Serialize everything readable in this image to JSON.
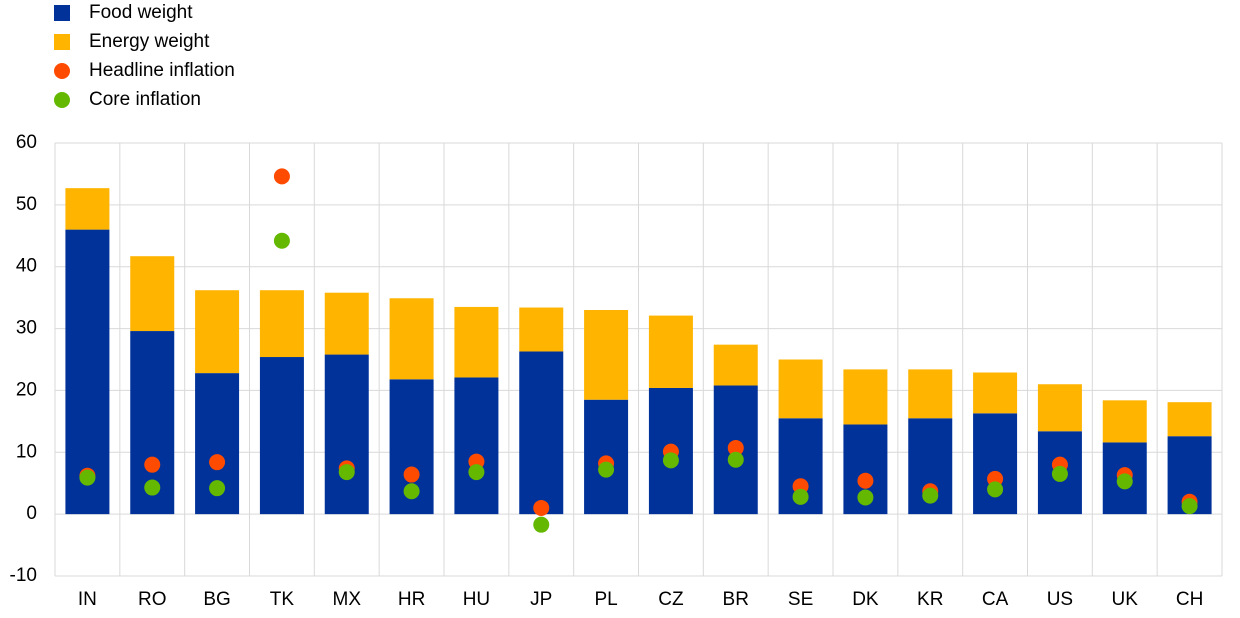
{
  "chart_data": {
    "type": "bar",
    "categories": [
      "IN",
      "RO",
      "BG",
      "TK",
      "MX",
      "HR",
      "HU",
      "JP",
      "PL",
      "CZ",
      "BR",
      "SE",
      "DK",
      "KR",
      "CA",
      "US",
      "UK",
      "CH"
    ],
    "series": [
      {
        "name": "Food weight",
        "type": "bar",
        "color": "#003299",
        "values": [
          46,
          29.6,
          22.8,
          25.4,
          25.8,
          21.8,
          22.1,
          26.3,
          18.5,
          20.4,
          20.8,
          15.5,
          14.5,
          15.5,
          16.3,
          13.4,
          11.6,
          12.6
        ]
      },
      {
        "name": "Energy weight",
        "type": "bar",
        "color": "#FFB400",
        "values": [
          6.7,
          12.1,
          13.4,
          10.8,
          10.0,
          13.1,
          11.4,
          7.1,
          14.5,
          11.7,
          6.6,
          9.5,
          8.9,
          7.9,
          6.6,
          7.6,
          6.8,
          5.5
        ]
      },
      {
        "name": "Headline inflation",
        "type": "scatter",
        "color": "#FF4B00",
        "values": [
          6.2,
          8,
          8.4,
          54.6,
          7.4,
          6.4,
          8.5,
          1.0,
          8.2,
          10.1,
          10.7,
          4.5,
          5.4,
          3.7,
          5.7,
          8.0,
          6.3,
          2.0
        ]
      },
      {
        "name": "Core inflation",
        "type": "scatter",
        "color": "#65B800",
        "values": [
          5.9,
          4.3,
          4.2,
          44.2,
          6.8,
          3.7,
          6.8,
          -1.7,
          7.2,
          8.7,
          8.8,
          2.8,
          2.7,
          3.0,
          4.0,
          6.5,
          5.3,
          1.3
        ]
      }
    ],
    "ylim": [
      -10,
      60
    ],
    "yticks": [
      -10,
      0,
      10,
      20,
      30,
      40,
      50,
      60
    ],
    "grid": true
  }
}
